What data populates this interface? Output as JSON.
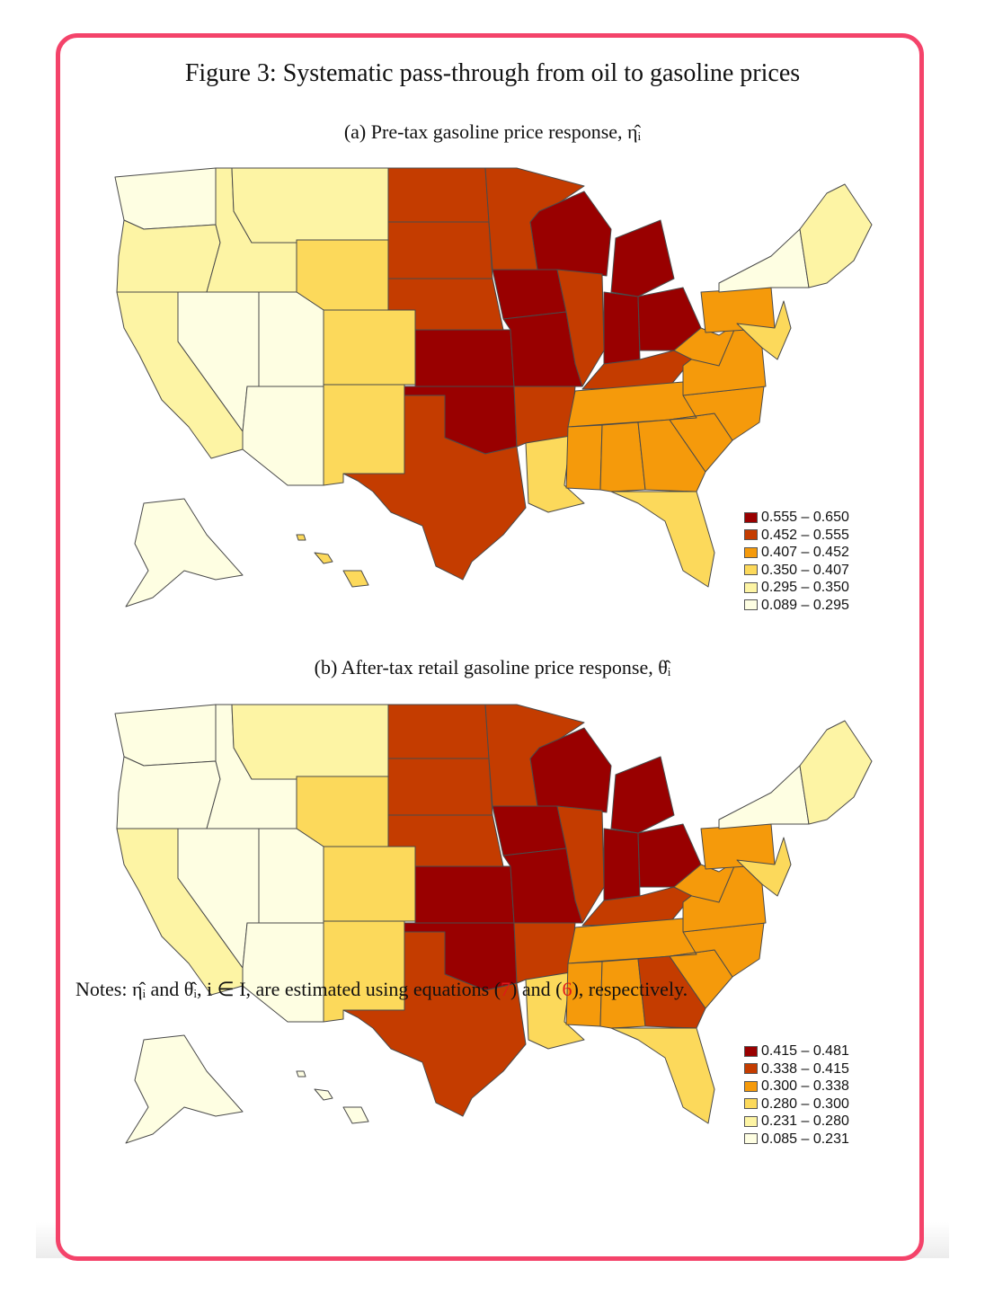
{
  "figure": {
    "title": "Figure 3: Systematic pass-through from oil to gasoline prices"
  },
  "panel_a": {
    "caption": "(a) Pre-tax gasoline price response, η̂ᵢ",
    "legend": [
      {
        "label": "0.555 – 0.650",
        "color": "#990000"
      },
      {
        "label": "0.452 – 0.555",
        "color": "#c43c00"
      },
      {
        "label": "0.407 – 0.452",
        "color": "#f59a0b"
      },
      {
        "label": "0.350 – 0.407",
        "color": "#fcd95b"
      },
      {
        "label": "0.295 – 0.350",
        "color": "#fdf4a4"
      },
      {
        "label": "0.089 – 0.295",
        "color": "#fefee2"
      }
    ],
    "states": {
      "WA": 5,
      "OR": 4,
      "CA": 4,
      "NV": 5,
      "ID": 4,
      "MT": 4,
      "WY": 3,
      "UT": 5,
      "AZ": 5,
      "CO": 3,
      "NM": 3,
      "ND": 1,
      "SD": 1,
      "NE": 1,
      "KS": 0,
      "OK": 0,
      "TX": 1,
      "MN": 1,
      "IA": 0,
      "MO": 0,
      "AR": 1,
      "LA": 3,
      "WI": 0,
      "IL": 1,
      "MI": 0,
      "IN": 0,
      "OH": 0,
      "KY": 1,
      "TN": 2,
      "MS": 2,
      "AL": 2,
      "GA": 2,
      "FL": 3,
      "SC": 2,
      "NC": 2,
      "VA": 2,
      "WV": 2,
      "PA": 2,
      "NY": 5,
      "NE_region": 4,
      "MD_DE_NJ": 3,
      "AK": 5,
      "HI": 3
    }
  },
  "panel_b": {
    "caption": "(b) After-tax retail gasoline price response, θ̂ᵢ",
    "legend": [
      {
        "label": "0.415 – 0.481",
        "color": "#990000"
      },
      {
        "label": "0.338 – 0.415",
        "color": "#c43c00"
      },
      {
        "label": "0.300 – 0.338",
        "color": "#f59a0b"
      },
      {
        "label": "0.280 – 0.300",
        "color": "#fcd95b"
      },
      {
        "label": "0.231 – 0.280",
        "color": "#fdf4a4"
      },
      {
        "label": "0.085 – 0.231",
        "color": "#fefee2"
      }
    ],
    "states": {
      "WA": 5,
      "OR": 5,
      "CA": 4,
      "NV": 5,
      "ID": 5,
      "MT": 4,
      "WY": 3,
      "UT": 5,
      "AZ": 5,
      "CO": 3,
      "NM": 3,
      "ND": 1,
      "SD": 1,
      "NE": 1,
      "KS": 0,
      "OK": 0,
      "TX": 1,
      "MN": 1,
      "IA": 0,
      "MO": 0,
      "AR": 1,
      "LA": 3,
      "WI": 0,
      "IL": 1,
      "MI": 0,
      "IN": 0,
      "OH": 0,
      "KY": 1,
      "TN": 2,
      "MS": 2,
      "AL": 2,
      "GA": 1,
      "FL": 3,
      "SC": 2,
      "NC": 2,
      "VA": 2,
      "WV": 2,
      "PA": 2,
      "NY": 5,
      "NE_region": 4,
      "MD_DE_NJ": 3,
      "AK": 5,
      "HI": 5
    }
  },
  "notes": {
    "prefix": "Notes: η̂ᵢ and θ̂ᵢ, i ∈ I, are estimated using equations (",
    "ref1": "7",
    "middle": ") and (",
    "ref2": "6",
    "suffix": "), respectively."
  }
}
